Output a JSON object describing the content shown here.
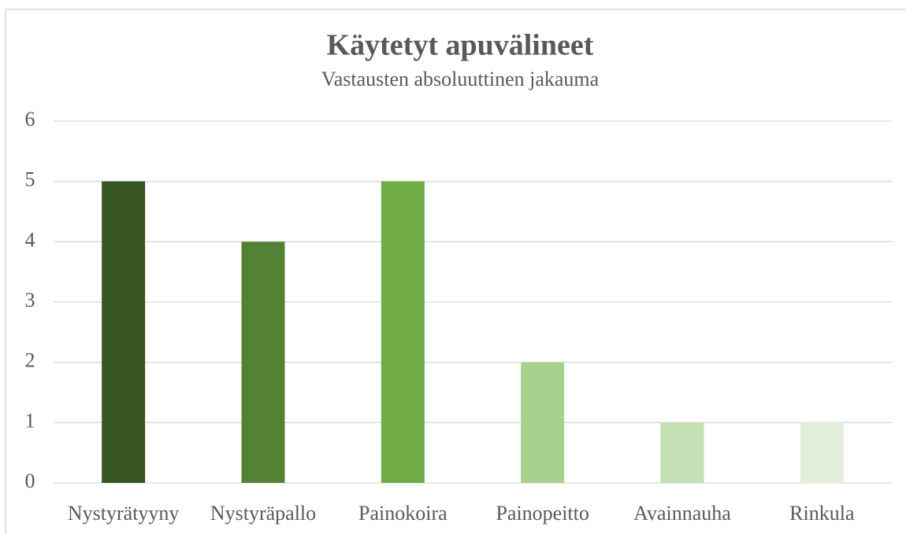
{
  "chart_data": {
    "type": "bar",
    "title": "Käytetyt apuvälineet",
    "subtitle": "Vastausten absoluuttinen jakauma",
    "categories": [
      "Nystyrätyyny",
      "Nystyräpallo",
      "Painokoira",
      "Painopeitto",
      "Avainnauha",
      "Rinkula"
    ],
    "values": [
      5,
      4,
      5,
      2,
      1,
      1
    ],
    "colors": [
      "#375623",
      "#548235",
      "#70ad47",
      "#a9d18e",
      "#c5e0b4",
      "#e2efda"
    ],
    "ylim": [
      0,
      6
    ],
    "yticks": [
      0,
      1,
      2,
      3,
      4,
      5,
      6
    ],
    "grid": true
  }
}
